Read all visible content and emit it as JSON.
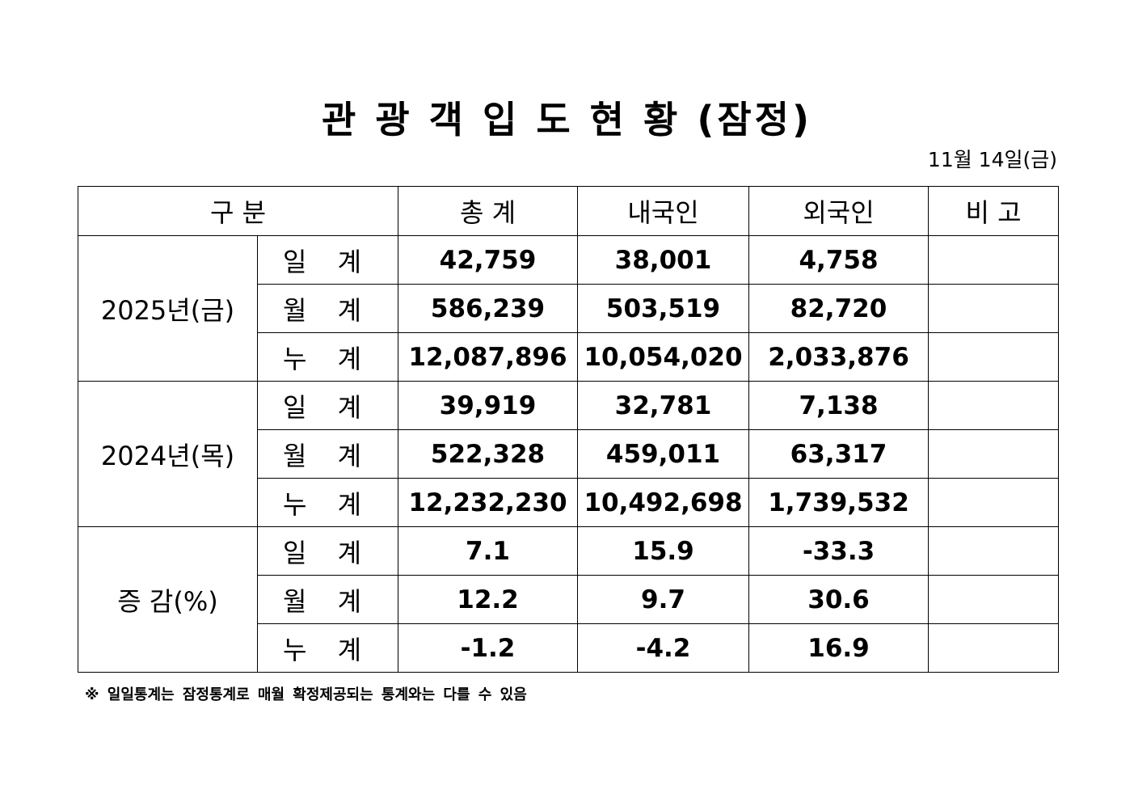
{
  "header": {
    "title": "관 광 객 입 도 현 황 (잠정)",
    "date": "11월 14일(금)"
  },
  "table": {
    "columns": [
      "구 분",
      "총 계",
      "내국인",
      "외국인",
      "비 고"
    ],
    "groups": [
      {
        "label": "2025년(금)",
        "rows": [
          {
            "label": "일 계",
            "values": [
              "42,759",
              "38,001",
              "4,758"
            ]
          },
          {
            "label": "월 계",
            "values": [
              "586,239",
              "503,519",
              "82,720"
            ]
          },
          {
            "label": "누 계",
            "values": [
              "12,087,896",
              "10,054,020",
              "2,033,876"
            ]
          }
        ]
      },
      {
        "label": "2024년(목)",
        "rows": [
          {
            "label": "일 계",
            "values": [
              "39,919",
              "32,781",
              "7,138"
            ]
          },
          {
            "label": "월 계",
            "values": [
              "522,328",
              "459,011",
              "63,317"
            ]
          },
          {
            "label": "누 계",
            "values": [
              "12,232,230",
              "10,492,698",
              "1,739,532"
            ]
          }
        ]
      },
      {
        "label": "증 감(%)",
        "rows": [
          {
            "label": "일 계",
            "values": [
              "7.1",
              "15.9",
              "-33.3"
            ]
          },
          {
            "label": "월 계",
            "values": [
              "12.2",
              "9.7",
              "30.6"
            ]
          },
          {
            "label": "누 계",
            "values": [
              "-1.2",
              "-4.2",
              "16.9"
            ]
          }
        ]
      }
    ]
  },
  "footnote": "※ 일일통계는 잠정통계로 매월 확정제공되는 통계와는 다를 수 있음"
}
